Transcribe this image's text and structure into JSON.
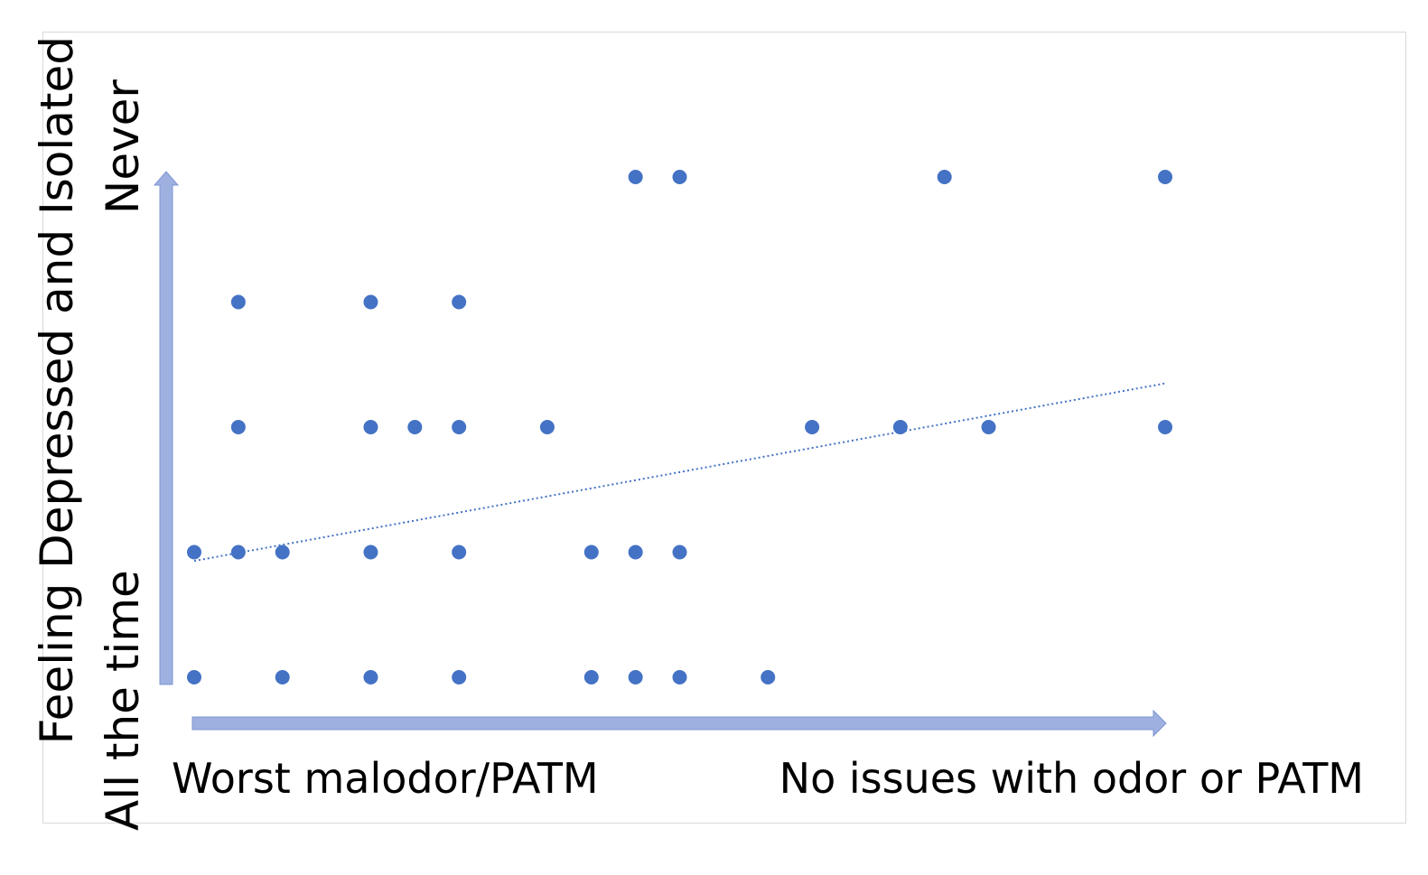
{
  "chart_data": {
    "type": "scatter",
    "title": "",
    "ylabel": "Feeling Depressed and Isolated",
    "y_high_label": "Never",
    "y_low_label": "All the time",
    "x_low_label": "Worst malodor/PATM",
    "x_high_label": "No issues with odor or PATM",
    "xlim": [
      1,
      23
    ],
    "ylim": [
      1,
      5
    ],
    "grid": false,
    "legend": "none",
    "point_color": "#4472C4",
    "arrow_color": "#9DB0E0",
    "trendline": {
      "type": "linear",
      "style": "dotted",
      "from": [
        1,
        1.93
      ],
      "to": [
        23,
        3.35
      ],
      "color": "#4472C4"
    },
    "points": [
      {
        "x": 11,
        "y": 5
      },
      {
        "x": 12,
        "y": 5
      },
      {
        "x": 18,
        "y": 5
      },
      {
        "x": 23,
        "y": 5
      },
      {
        "x": 2,
        "y": 4
      },
      {
        "x": 5,
        "y": 4
      },
      {
        "x": 7,
        "y": 4
      },
      {
        "x": 2,
        "y": 3
      },
      {
        "x": 5,
        "y": 3
      },
      {
        "x": 6,
        "y": 3
      },
      {
        "x": 7,
        "y": 3
      },
      {
        "x": 9,
        "y": 3
      },
      {
        "x": 15,
        "y": 3
      },
      {
        "x": 17,
        "y": 3
      },
      {
        "x": 19,
        "y": 3
      },
      {
        "x": 23,
        "y": 3
      },
      {
        "x": 1,
        "y": 2
      },
      {
        "x": 2,
        "y": 2
      },
      {
        "x": 3,
        "y": 2
      },
      {
        "x": 5,
        "y": 2
      },
      {
        "x": 7,
        "y": 2
      },
      {
        "x": 10,
        "y": 2
      },
      {
        "x": 11,
        "y": 2
      },
      {
        "x": 12,
        "y": 2
      },
      {
        "x": 1,
        "y": 1
      },
      {
        "x": 3,
        "y": 1
      },
      {
        "x": 5,
        "y": 1
      },
      {
        "x": 7,
        "y": 1
      },
      {
        "x": 10,
        "y": 1
      },
      {
        "x": 11,
        "y": 1
      },
      {
        "x": 12,
        "y": 1
      },
      {
        "x": 14,
        "y": 1
      }
    ]
  }
}
